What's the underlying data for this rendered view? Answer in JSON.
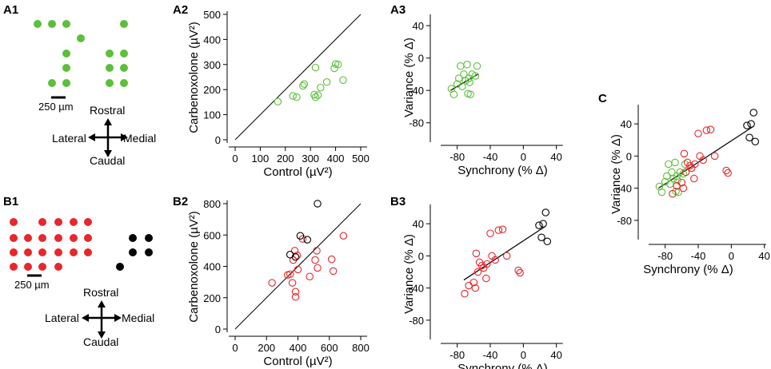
{
  "colors": {
    "green": "#5cbf3a",
    "red": "#e8262b",
    "black": "#000000"
  },
  "panels": {
    "a1": {
      "label": "A1",
      "scale_label": "250 µm"
    },
    "a2": {
      "label": "A2"
    },
    "a3": {
      "label": "A3"
    },
    "b1": {
      "label": "B1",
      "scale_label": "250 µm"
    },
    "b2": {
      "label": "B2"
    },
    "b3": {
      "label": "B3"
    },
    "c": {
      "label": "C"
    }
  },
  "compass": {
    "rostral": "Rostral",
    "caudal": "Caudal",
    "lateral": "Lateral",
    "medial": "Medial"
  },
  "chart_data": [
    {
      "id": "a2",
      "type": "scatter",
      "xlabel": "Control (µV²)",
      "ylabel": "Carbenoxolone (µV²)",
      "xlim": [
        0,
        500
      ],
      "ylim": [
        0,
        500
      ],
      "xticks": [
        "0",
        "100",
        "200",
        "300",
        "400",
        "500"
      ],
      "yticks": [
        "0",
        "100",
        "200",
        "300",
        "400",
        "500"
      ],
      "xtick_values": [
        0,
        100,
        200,
        300,
        400,
        500
      ],
      "ytick_values": [
        0,
        100,
        200,
        300,
        400,
        500
      ],
      "identity_line": true,
      "series": [
        {
          "name": "green",
          "color": "green",
          "points": [
            [
              170,
              152
            ],
            [
              230,
              175
            ],
            [
              245,
              170
            ],
            [
              270,
              215
            ],
            [
              275,
              222
            ],
            [
              315,
              180
            ],
            [
              320,
              170
            ],
            [
              320,
              288
            ],
            [
              330,
              178
            ],
            [
              340,
              208
            ],
            [
              365,
              230
            ],
            [
              395,
              285
            ],
            [
              400,
              302
            ],
            [
              410,
              300
            ],
            [
              430,
              238
            ]
          ]
        }
      ]
    },
    {
      "id": "a3",
      "type": "scatter",
      "xlabel": "Synchrony (% Δ)",
      "ylabel": "Variance (% Δ)",
      "xlim": [
        -100,
        50
      ],
      "ylim": [
        -100,
        50
      ],
      "xticks": [
        "-80",
        "-40",
        "0",
        "40"
      ],
      "yticks": [
        "40",
        "0",
        "-40",
        "-80"
      ],
      "xtick_values": [
        -80,
        -40,
        0,
        40
      ],
      "ytick_values": [
        40,
        0,
        -40,
        -80
      ],
      "fit_line": [
        [
          -88,
          -40
        ],
        [
          -55,
          -20
        ]
      ],
      "series": [
        {
          "name": "green",
          "color": "green",
          "points": [
            [
              -87,
              -38
            ],
            [
              -84,
              -45
            ],
            [
              -80,
              -32
            ],
            [
              -78,
              -25
            ],
            [
              -76,
              -10
            ],
            [
              -74,
              -35
            ],
            [
              -72,
              -20
            ],
            [
              -70,
              -28
            ],
            [
              -68,
              -8
            ],
            [
              -67,
              -44
            ],
            [
              -66,
              -25
            ],
            [
              -65,
              -30
            ],
            [
              -64,
              -45
            ],
            [
              -62,
              -20
            ],
            [
              -58,
              -22
            ],
            [
              -56,
              -10
            ]
          ]
        }
      ]
    },
    {
      "id": "b2",
      "type": "scatter",
      "xlabel": "Control (µV²)",
      "ylabel": "Carbenoxolone (µV²)",
      "xlim": [
        0,
        800
      ],
      "ylim": [
        0,
        800
      ],
      "xticks": [
        "0",
        "200",
        "400",
        "600",
        "800"
      ],
      "yticks": [
        "0",
        "200",
        "400",
        "600",
        "800"
      ],
      "xtick_values": [
        0,
        200,
        400,
        600,
        800
      ],
      "ytick_values": [
        0,
        200,
        400,
        600,
        800
      ],
      "identity_line": true,
      "series": [
        {
          "name": "red",
          "color": "red",
          "points": [
            [
              235,
              295
            ],
            [
              335,
              345
            ],
            [
              350,
              350
            ],
            [
              365,
              295
            ],
            [
              370,
              440
            ],
            [
              380,
              500
            ],
            [
              385,
              238
            ],
            [
              385,
              205
            ],
            [
              395,
              470
            ],
            [
              400,
              380
            ],
            [
              430,
              575
            ],
            [
              475,
              335
            ],
            [
              510,
              440
            ],
            [
              520,
              500
            ],
            [
              525,
              390
            ],
            [
              615,
              445
            ],
            [
              625,
              370
            ],
            [
              690,
              595
            ]
          ]
        },
        {
          "name": "black",
          "color": "black",
          "points": [
            [
              350,
              475
            ],
            [
              385,
              460
            ],
            [
              415,
              595
            ],
            [
              460,
              570
            ],
            [
              525,
              800
            ]
          ]
        }
      ]
    },
    {
      "id": "b3",
      "type": "scatter",
      "xlabel": "Synchrony (% Δ)",
      "ylabel": "Variance (% Δ)",
      "xlim": [
        -100,
        50
      ],
      "ylim": [
        -100,
        60
      ],
      "xticks": [
        "-80",
        "-40",
        "0",
        "40"
      ],
      "yticks": [
        "40",
        "0",
        "-40",
        "-80"
      ],
      "xtick_values": [
        -80,
        -40,
        0,
        40
      ],
      "ytick_values": [
        40,
        0,
        -40,
        -80
      ],
      "fit_line": [
        [
          -72,
          -30
        ],
        [
          27,
          37
        ]
      ],
      "series": [
        {
          "name": "red",
          "color": "red",
          "points": [
            [
              -71,
              -47
            ],
            [
              -66,
              -37
            ],
            [
              -60,
              -33
            ],
            [
              -58,
              -40
            ],
            [
              -57,
              3
            ],
            [
              -55,
              -20
            ],
            [
              -53,
              -8
            ],
            [
              -50,
              -12
            ],
            [
              -48,
              -15
            ],
            [
              -45,
              -28
            ],
            [
              -44,
              -10
            ],
            [
              -40,
              28
            ],
            [
              -38,
              0
            ],
            [
              -34,
              -5
            ],
            [
              -30,
              32
            ],
            [
              -25,
              33
            ],
            [
              -20,
              0
            ],
            [
              -6,
              -18
            ],
            [
              -4,
              -21
            ]
          ]
        },
        {
          "name": "black",
          "color": "black",
          "points": [
            [
              19,
              38
            ],
            [
              22,
              23
            ],
            [
              24,
              40
            ],
            [
              27,
              54
            ],
            [
              29,
              18
            ]
          ]
        }
      ]
    },
    {
      "id": "c",
      "type": "scatter",
      "xlabel": "Synchrony (% Δ)",
      "ylabel": "Variance (% Δ)",
      "xlim": [
        -100,
        50
      ],
      "ylim": [
        -100,
        60
      ],
      "xticks": [
        "-80",
        "-40",
        "0",
        "40"
      ],
      "yticks": [
        "40",
        "0",
        "-40",
        "-80"
      ],
      "xtick_values": [
        -80,
        -40,
        0,
        40
      ],
      "ytick_values": [
        40,
        0,
        -40,
        -80
      ],
      "fit_line": [
        [
          -88,
          -40
        ],
        [
          27,
          37
        ]
      ],
      "series": [
        {
          "name": "green",
          "color": "green",
          "points": [
            [
              -87,
              -38
            ],
            [
              -84,
              -45
            ],
            [
              -80,
              -32
            ],
            [
              -78,
              -25
            ],
            [
              -76,
              -10
            ],
            [
              -74,
              -35
            ],
            [
              -72,
              -20
            ],
            [
              -70,
              -28
            ],
            [
              -68,
              -8
            ],
            [
              -67,
              -44
            ],
            [
              -66,
              -25
            ],
            [
              -65,
              -30
            ],
            [
              -64,
              -45
            ],
            [
              -62,
              -20
            ],
            [
              -58,
              -22
            ],
            [
              -56,
              -10
            ]
          ]
        },
        {
          "name": "red",
          "color": "red",
          "points": [
            [
              -71,
              -47
            ],
            [
              -66,
              -37
            ],
            [
              -60,
              -33
            ],
            [
              -58,
              -40
            ],
            [
              -57,
              3
            ],
            [
              -55,
              -20
            ],
            [
              -53,
              -8
            ],
            [
              -50,
              -12
            ],
            [
              -48,
              -15
            ],
            [
              -45,
              -28
            ],
            [
              -44,
              -10
            ],
            [
              -40,
              28
            ],
            [
              -38,
              0
            ],
            [
              -34,
              -5
            ],
            [
              -30,
              32
            ],
            [
              -25,
              33
            ],
            [
              -20,
              0
            ],
            [
              -6,
              -18
            ],
            [
              -4,
              -21
            ]
          ]
        },
        {
          "name": "black",
          "color": "black",
          "points": [
            [
              19,
              38
            ],
            [
              22,
              23
            ],
            [
              24,
              40
            ],
            [
              27,
              54
            ],
            [
              29,
              18
            ]
          ]
        }
      ]
    }
  ]
}
